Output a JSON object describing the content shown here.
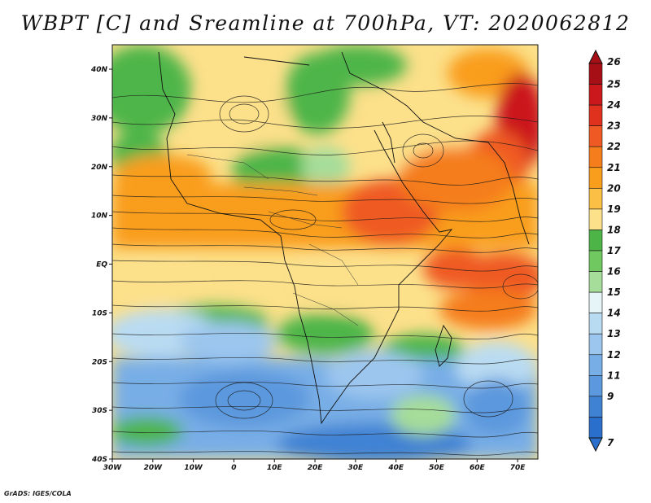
{
  "title": "WBPT [C] and Sreamline at 700hPa, VT: 2020062812",
  "credit": "GrADS: IGES/COLA",
  "map": {
    "lon_range": [
      -30,
      75
    ],
    "lat_range": [
      -40,
      45
    ],
    "lon_ticks": [
      "30W",
      "20W",
      "10W",
      "0",
      "10E",
      "20E",
      "30E",
      "40E",
      "50E",
      "60E",
      "70E"
    ],
    "lat_ticks": [
      "40N",
      "30N",
      "20N",
      "10N",
      "EQ",
      "10S",
      "20S",
      "30S",
      "40S"
    ]
  },
  "colorbar": {
    "labels": [
      "26",
      "25",
      "24",
      "23",
      "22",
      "21",
      "20",
      "19",
      "18",
      "17",
      "16",
      "15",
      "14",
      "13",
      "12",
      "11",
      "9",
      "7"
    ],
    "colors": [
      "#a50f15",
      "#cb181d",
      "#e0301e",
      "#ef5a24",
      "#f57d1c",
      "#f99d1c",
      "#fbbf45",
      "#fce08a",
      "#4db548",
      "#6fc960",
      "#a6dd9a",
      "#e6f5f8",
      "#b9dbf2",
      "#9cc6ee",
      "#78aee6",
      "#5b98dd",
      "#3f82d3",
      "#2a6fcb"
    ]
  }
}
